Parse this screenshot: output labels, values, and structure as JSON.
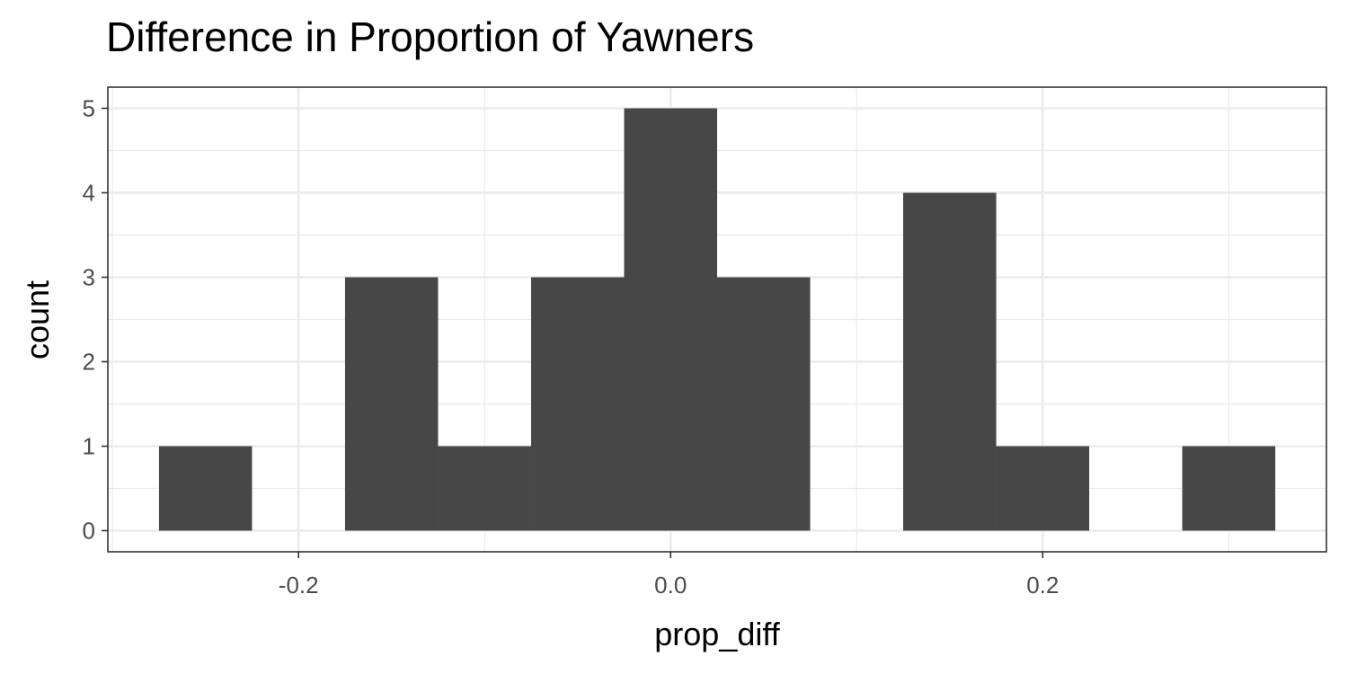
{
  "chart_data": {
    "type": "bar",
    "title": "Difference in Proportion of Yawners",
    "xlabel": "prop_diff",
    "ylabel": "count",
    "bin_width": 0.05,
    "bins": [
      {
        "x": -0.25,
        "count": 1
      },
      {
        "x": -0.2,
        "count": 0
      },
      {
        "x": -0.15,
        "count": 3
      },
      {
        "x": -0.1,
        "count": 1
      },
      {
        "x": -0.05,
        "count": 3
      },
      {
        "x": 0.0,
        "count": 5
      },
      {
        "x": 0.05,
        "count": 3
      },
      {
        "x": 0.1,
        "count": 0
      },
      {
        "x": 0.15,
        "count": 4
      },
      {
        "x": 0.2,
        "count": 1
      },
      {
        "x": 0.25,
        "count": 0
      },
      {
        "x": 0.3,
        "count": 1
      }
    ],
    "xlim": [
      -0.3025,
      0.3525
    ],
    "ylim": [
      -0.25,
      5.25
    ],
    "x_ticks": [
      -0.2,
      0.0,
      0.2
    ],
    "x_tick_labels": [
      "-0.2",
      "0.0",
      "0.2"
    ],
    "y_ticks": [
      0,
      1,
      2,
      3,
      4,
      5
    ],
    "y_tick_labels": [
      "0",
      "1",
      "2",
      "3",
      "4",
      "5"
    ],
    "grid": true,
    "colors": {
      "bar": "#474747",
      "grid": "#ebebeb",
      "panel_border": "#333333"
    }
  }
}
